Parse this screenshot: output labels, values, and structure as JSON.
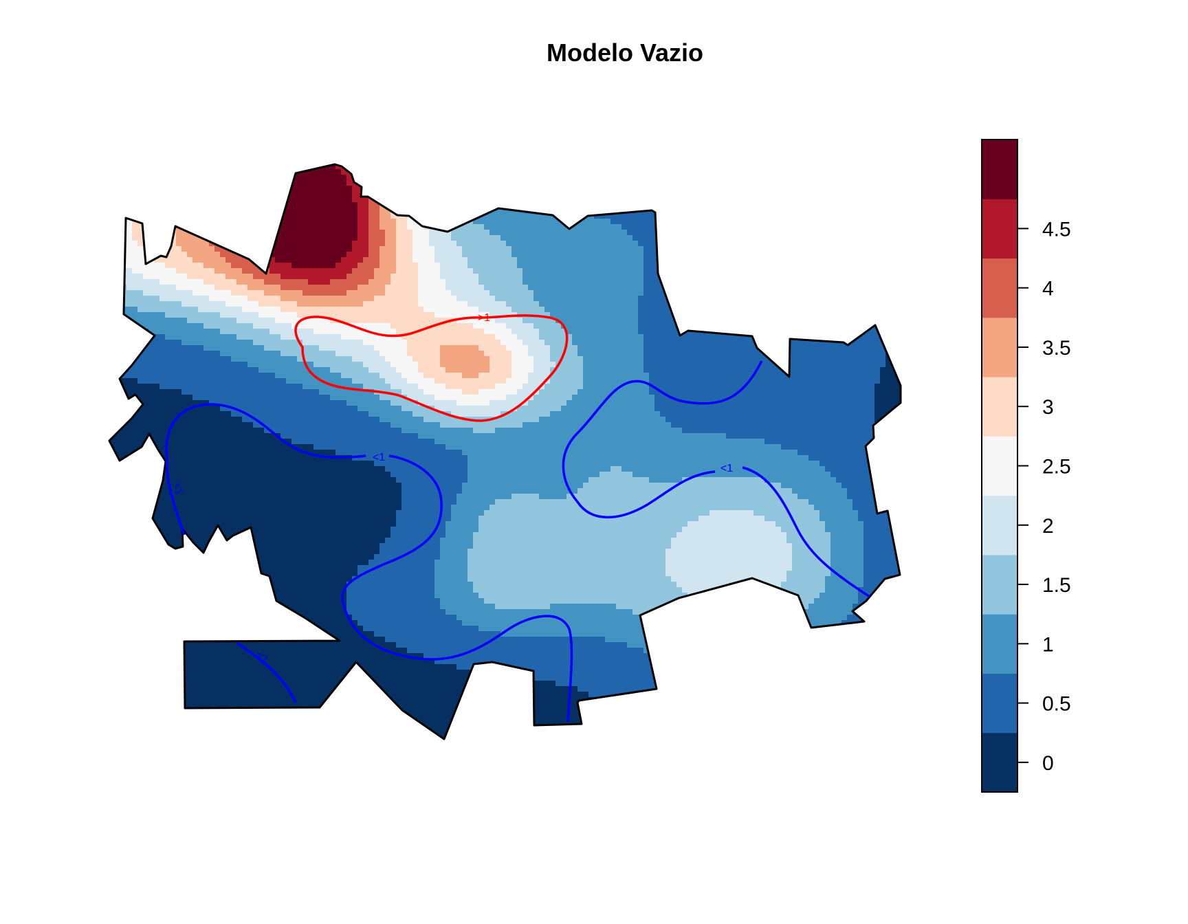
{
  "title": "Modelo Vazio",
  "colors": {
    "background": "#ffffff",
    "outline": "#000000",
    "contour_high": "#ff0000",
    "contour_low": "#0000ff"
  },
  "legend": {
    "ticks": [
      "0",
      "0.5",
      "1",
      "1.5",
      "2",
      "2.5",
      "3",
      "3.5",
      "4",
      "4.5"
    ],
    "bands": [
      {
        "from": -0.25,
        "to": 0.25,
        "color": "#053061"
      },
      {
        "from": 0.25,
        "to": 0.75,
        "color": "#2166ac"
      },
      {
        "from": 0.75,
        "to": 1.25,
        "color": "#4393c3"
      },
      {
        "from": 1.25,
        "to": 1.75,
        "color": "#92c5de"
      },
      {
        "from": 1.75,
        "to": 2.25,
        "color": "#d1e5f0"
      },
      {
        "from": 2.25,
        "to": 2.75,
        "color": "#f7f7f7"
      },
      {
        "from": 2.75,
        "to": 3.25,
        "color": "#fddbc7"
      },
      {
        "from": 3.25,
        "to": 3.75,
        "color": "#f4a582"
      },
      {
        "from": 3.75,
        "to": 4.25,
        "color": "#d6604d"
      },
      {
        "from": 4.25,
        "to": 4.75,
        "color": "#b2182b"
      },
      {
        "from": 4.75,
        "to": 5.25,
        "color": "#67001f"
      }
    ]
  },
  "contours": [
    {
      "name": "high",
      "label": ">1"
    },
    {
      "name": "low-left",
      "label": "<1"
    },
    {
      "name": "low-right",
      "label": "<1"
    },
    {
      "name": "low-west",
      "label": "<1"
    },
    {
      "name": "low-south",
      "label": "<1"
    }
  ]
}
